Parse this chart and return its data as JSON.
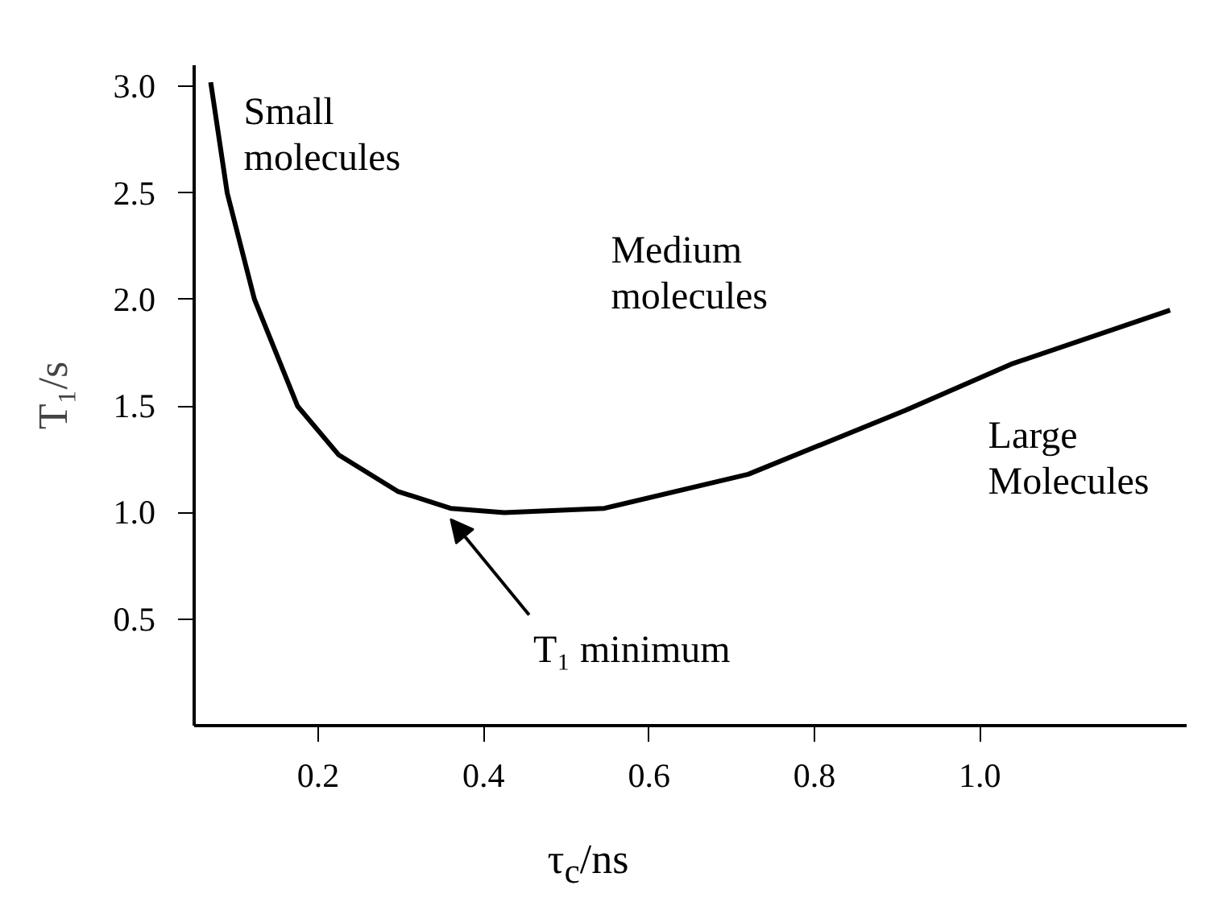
{
  "chart_data": {
    "type": "line",
    "xlabel": "τ$_{c}$/ns",
    "ylabel": "T₁/s",
    "x": [
      0.07,
      0.09,
      0.123,
      0.175,
      0.225,
      0.296,
      0.36,
      0.425,
      0.546,
      0.72,
      0.91,
      1.04,
      1.23
    ],
    "series": [
      {
        "color": "#000000",
        "values": [
          3.02,
          2.5,
          2.0,
          1.5,
          1.27,
          1.1,
          1.02,
          1.0,
          1.02,
          1.18,
          1.48,
          1.7,
          1.95
        ]
      }
    ],
    "xlim": [
      0.05,
      1.25
    ],
    "ylim": [
      0,
      3.1
    ],
    "xticks": [
      0.2,
      0.4,
      0.6,
      0.8,
      {
        "value": 1,
        "label": "1.0"
      }
    ],
    "yticks": [
      0.5,
      {
        "value": 1,
        "label": "1.0"
      },
      1.5,
      {
        "value": 2,
        "label": "2.0"
      },
      2.5,
      {
        "value": 3,
        "label": "3.0"
      }
    ],
    "annotations": [
      "Small\nmolecules",
      "Medium\nmolecules",
      "Large\nMolecules",
      {
        "text": "T₁ minimum",
        "x": 0.36,
        "y": 1.0
      }
    ],
    "grid": false,
    "marker": "none",
    "line_style": "solid"
  }
}
